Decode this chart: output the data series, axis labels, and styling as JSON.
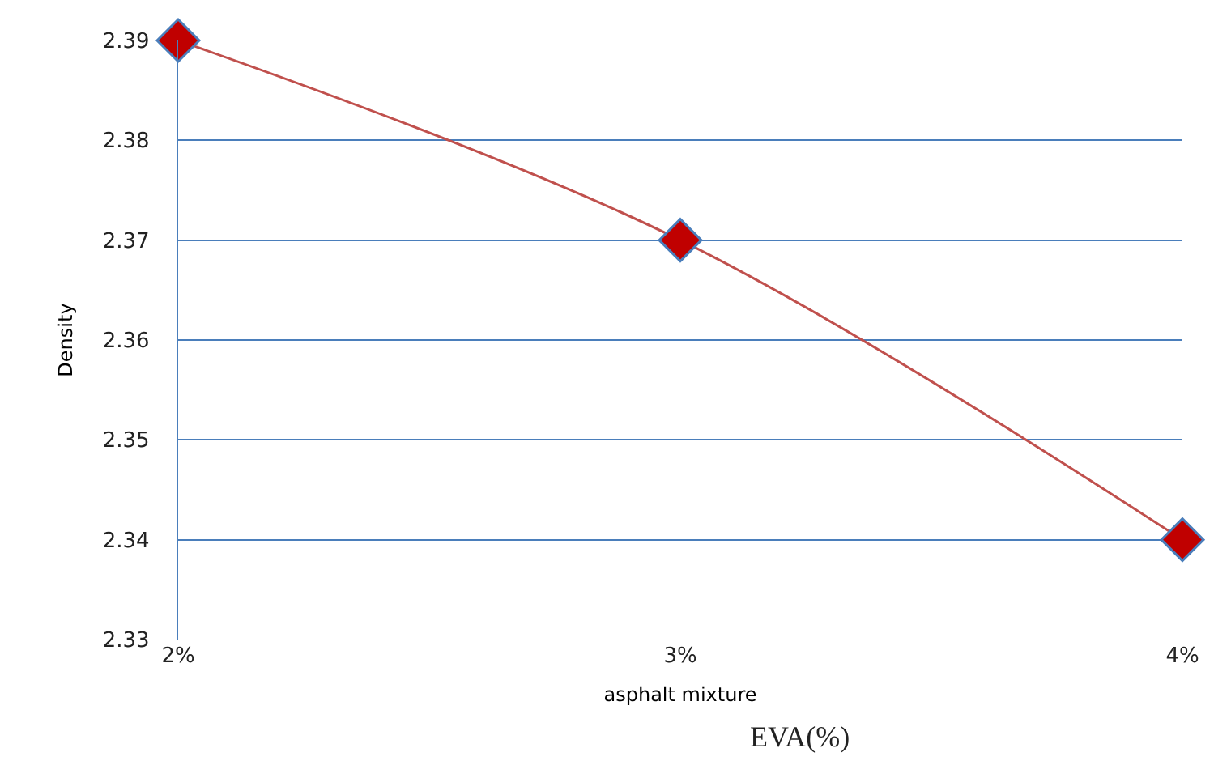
{
  "chart_data": {
    "type": "line",
    "xlabel": "asphalt mixture",
    "ylabel": "Density",
    "annotations": [
      "EVA(%)"
    ],
    "categories": [
      "2%",
      "3%",
      "4%"
    ],
    "series": [
      {
        "color": "#c0504d",
        "values": [
          2.39,
          2.37,
          2.34
        ]
      }
    ],
    "ylim": [
      2.33,
      2.39
    ],
    "yticks": [
      2.33,
      2.34,
      2.35,
      2.36,
      2.37,
      2.38,
      2.39
    ],
    "grid": "y",
    "marker": "diamond",
    "line_style": "solid",
    "legend": false
  }
}
